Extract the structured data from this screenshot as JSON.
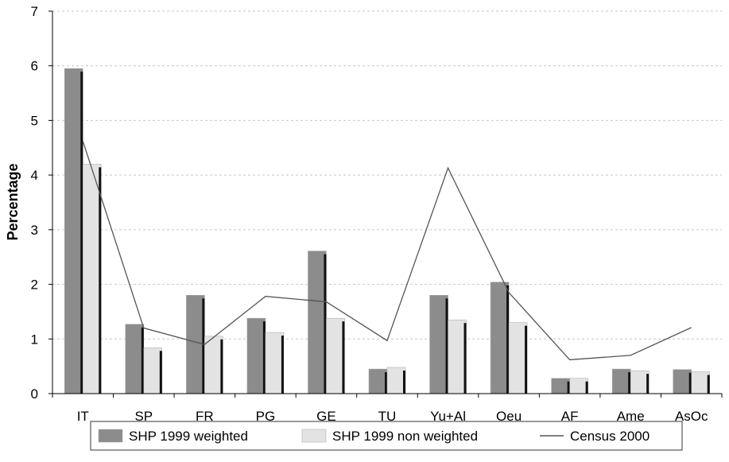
{
  "chart_data": {
    "type": "bar",
    "title": "",
    "xlabel": "",
    "ylabel": "Percentage",
    "ylim": [
      0,
      7
    ],
    "yticks": [
      0,
      1,
      2,
      3,
      4,
      5,
      6,
      7
    ],
    "grid": true,
    "legend_position": "bottom",
    "categories": [
      "IT",
      "SP",
      "FR",
      "PG",
      "GE",
      "TU",
      "Yu+Al",
      "Oeu",
      "AF",
      "Ame",
      "AsOc"
    ],
    "series": [
      {
        "name": "SHP 1999 weighted",
        "kind": "bar",
        "color": "#8c8c8c",
        "values": [
          5.95,
          1.27,
          1.8,
          1.38,
          2.61,
          0.45,
          1.8,
          2.04,
          0.28,
          0.45,
          0.44
        ]
      },
      {
        "name": "SHP 1999 non weighted",
        "kind": "bar",
        "color": "#e3e3e3",
        "values": [
          4.2,
          0.84,
          1.05,
          1.12,
          1.38,
          0.48,
          1.35,
          1.3,
          0.28,
          0.42,
          0.4
        ]
      },
      {
        "name": "Census 2000",
        "kind": "line",
        "color": "#555555",
        "values": [
          4.62,
          1.2,
          0.9,
          1.78,
          1.68,
          0.97,
          4.13,
          1.85,
          0.62,
          0.7,
          1.21
        ]
      }
    ]
  }
}
